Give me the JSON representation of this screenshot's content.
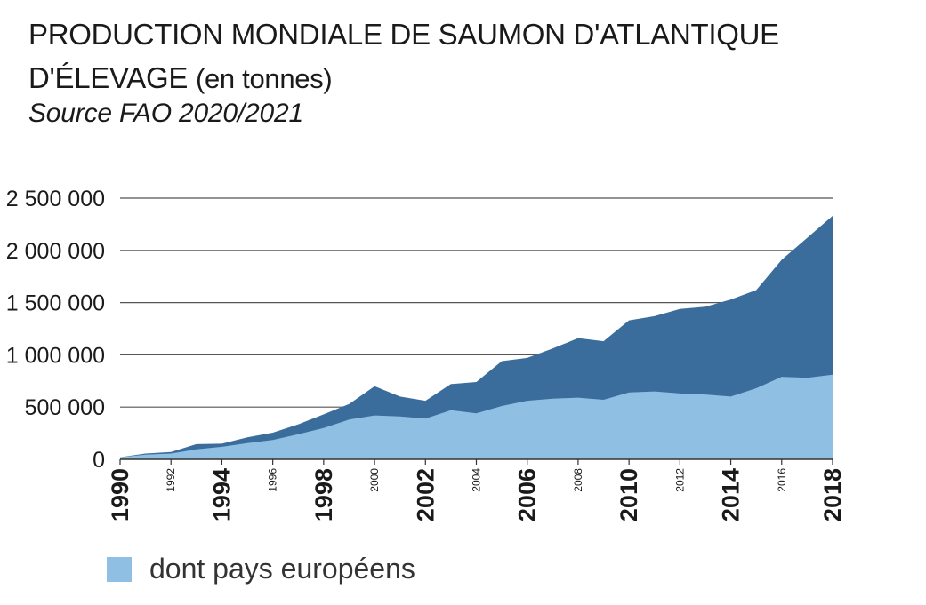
{
  "title": {
    "line1": "PRODUCTION MONDIALE DE SAUMON D'ATLANTIQUE",
    "line2_main": "D'ÉLEVAGE",
    "line2_unit": "(en tonnes)"
  },
  "source": "Source FAO 2020/2021",
  "legend": {
    "label": "dont pays européens",
    "color": "#8fbfe2"
  },
  "colors": {
    "world": "#3a6d9b",
    "europe": "#8fbfe2",
    "grid": "#555555",
    "axis": "#333333"
  },
  "chart_data": {
    "type": "area",
    "title": "PRODUCTION MONDIALE DE SAUMON D'ATLANTIQUE D'ÉLEVAGE (en tonnes)",
    "subtitle": "Source FAO 2020/2021",
    "x": [
      1990,
      1991,
      1992,
      1993,
      1994,
      1995,
      1996,
      1997,
      1998,
      1999,
      2000,
      2001,
      2002,
      2003,
      2004,
      2005,
      2006,
      2007,
      2008,
      2009,
      2010,
      2011,
      2012,
      2013,
      2014,
      2015,
      2016,
      2017,
      2018
    ],
    "xticks": [
      {
        "year": 1990,
        "label": "1990",
        "major": true
      },
      {
        "year": 1992,
        "label": "1992",
        "major": false
      },
      {
        "year": 1994,
        "label": "1994",
        "major": true
      },
      {
        "year": 1996,
        "label": "1996",
        "major": false
      },
      {
        "year": 1998,
        "label": "1998",
        "major": true
      },
      {
        "year": 2000,
        "label": "2000",
        "major": false
      },
      {
        "year": 2002,
        "label": "2002",
        "major": true
      },
      {
        "year": 2004,
        "label": "2004",
        "major": false
      },
      {
        "year": 2006,
        "label": "2006",
        "major": true
      },
      {
        "year": 2008,
        "label": "2008",
        "major": false
      },
      {
        "year": 2010,
        "label": "2010",
        "major": true
      },
      {
        "year": 2012,
        "label": "2012",
        "major": false
      },
      {
        "year": 2014,
        "label": "2014",
        "major": true
      },
      {
        "year": 2016,
        "label": "2016",
        "major": false
      },
      {
        "year": 2018,
        "label": "2018",
        "major": true
      }
    ],
    "yticks": [
      {
        "value": 0,
        "label": "0"
      },
      {
        "value": 500000,
        "label": "500 000"
      },
      {
        "value": 1000000,
        "label": "1 000 000"
      },
      {
        "value": 1500000,
        "label": "1 500 000"
      },
      {
        "value": 2000000,
        "label": "2 000 000"
      },
      {
        "value": 2500000,
        "label": "2 500 000"
      }
    ],
    "ylim": [
      0,
      2500000
    ],
    "grid": true,
    "legend_position": "bottom-left",
    "series": [
      {
        "key": "world",
        "values": [
          20000,
          55000,
          70000,
          145000,
          150000,
          210000,
          255000,
          335000,
          430000,
          530000,
          700000,
          600000,
          560000,
          720000,
          740000,
          940000,
          970000,
          1060000,
          1160000,
          1130000,
          1330000,
          1370000,
          1440000,
          1460000,
          1530000,
          1620000,
          1910000,
          2120000,
          2330000
        ]
      },
      {
        "key": "europe",
        "name": "dont pays européens",
        "values": [
          20000,
          45000,
          55000,
          95000,
          120000,
          155000,
          185000,
          240000,
          300000,
          380000,
          420000,
          410000,
          390000,
          470000,
          440000,
          510000,
          560000,
          580000,
          590000,
          570000,
          640000,
          650000,
          630000,
          620000,
          600000,
          680000,
          790000,
          780000,
          810000
        ]
      }
    ]
  }
}
